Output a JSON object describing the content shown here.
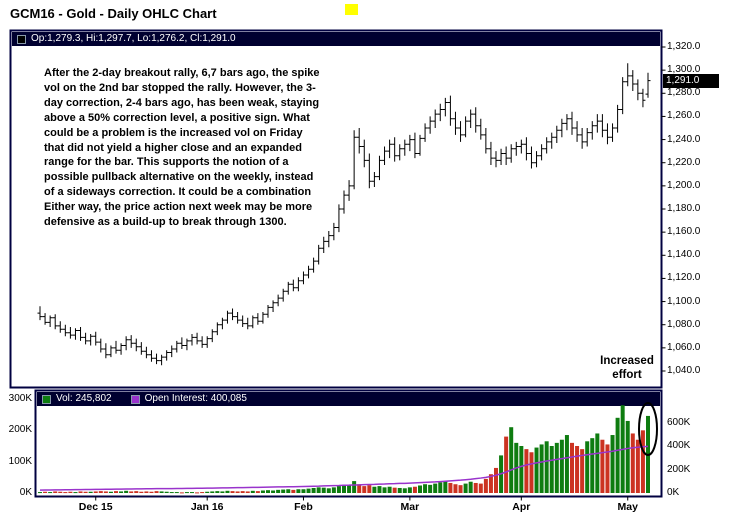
{
  "window": {
    "title": "GCM16 - Gold - Daily OHLC Chart"
  },
  "colors": {
    "frame": "#000040",
    "legend_bg": "#000030",
    "price": "#000000",
    "volume_up": "#0e7c10",
    "volume_down": "#cc3322",
    "open_interest": "#9933cc",
    "highlight": "#ffff00",
    "badge_bg": "#000000",
    "badge_text": "#ffffff"
  },
  "price_panel": {
    "legend_text": "Op:1,279.3, Hi:1,297.7, Lo:1,276.2, Cl:1,291.0",
    "current_price_label": "1,291.0",
    "axis": {
      "labels": [
        "1,320.0",
        "1,300.0",
        "1,280.0",
        "1,260.0",
        "1,240.0",
        "1,220.0",
        "1,200.0",
        "1,180.0",
        "1,160.0",
        "1,140.0",
        "1,120.0",
        "1,100.0",
        "1,080.0",
        "1,060.0",
        "1,040.0"
      ],
      "values": [
        1320,
        1300,
        1280,
        1260,
        1240,
        1220,
        1200,
        1180,
        1160,
        1140,
        1120,
        1100,
        1080,
        1060,
        1040
      ]
    },
    "annotation_lines": [
      "After the 2-day breakout rally, 6,7 bars ago, the spike",
      "vol on the 2nd bar stopped the rally.  However, the 3-",
      "day correction, 2-4 bars ago, has been weak, staying",
      "above a 50% correction level, a positive sign.  What",
      "could be a problem is the increased vol on Friday",
      "that did not yield a higher close and an expanded",
      "range for the bar.  This supports the notion of a",
      "possible pullback alternative on the weekly, instead",
      "of a sideways correction.  It could be a combination",
      "Either way, the price action next week may be more",
      "defensive as a build-up to break through 1300."
    ],
    "effort_note_lines": [
      "Increased",
      "effort"
    ]
  },
  "volume_panel": {
    "legend_vol": "Vol: 245,802",
    "legend_oi": "Open Interest: 400,085",
    "left_axis": {
      "labels": [
        "300K",
        "200K",
        "100K",
        "0K"
      ],
      "values": [
        300,
        200,
        100,
        0
      ]
    },
    "right_axis": {
      "labels": [
        "600K",
        "400K",
        "200K",
        "0K"
      ],
      "values": [
        600,
        400,
        200,
        0
      ]
    }
  },
  "chart_data": {
    "type": "ohlc+volume",
    "title": "GCM16 - Gold - Daily OHLC Chart",
    "last_bar": {
      "open": 1279.3,
      "high": 1297.7,
      "low": 1276.2,
      "close": 1291.0,
      "volume": 245802,
      "open_interest": 400085
    },
    "x_ticks": [
      {
        "label": "Dec 15",
        "index": 11
      },
      {
        "label": "Jan 16",
        "index": 33
      },
      {
        "label": "Feb",
        "index": 52
      },
      {
        "label": "Mar",
        "index": 73
      },
      {
        "label": "Apr",
        "index": 95
      },
      {
        "label": "May",
        "index": 116
      }
    ],
    "price": {
      "ylim": [
        1040,
        1320
      ],
      "tick_step": 20,
      "ohlc": [
        [
          1090,
          1096,
          1084,
          1087
        ],
        [
          1087,
          1090,
          1080,
          1082
        ],
        [
          1082,
          1088,
          1078,
          1086
        ],
        [
          1086,
          1089,
          1076,
          1079
        ],
        [
          1079,
          1083,
          1073,
          1076
        ],
        [
          1076,
          1080,
          1070,
          1073
        ],
        [
          1073,
          1078,
          1068,
          1071
        ],
        [
          1071,
          1077,
          1067,
          1075
        ],
        [
          1075,
          1078,
          1066,
          1069
        ],
        [
          1069,
          1073,
          1063,
          1066
        ],
        [
          1066,
          1072,
          1062,
          1070
        ],
        [
          1070,
          1074,
          1062,
          1065
        ],
        [
          1065,
          1068,
          1056,
          1059
        ],
        [
          1059,
          1064,
          1051,
          1054
        ],
        [
          1054,
          1062,
          1052,
          1060
        ],
        [
          1060,
          1066,
          1055,
          1058
        ],
        [
          1058,
          1064,
          1054,
          1062
        ],
        [
          1062,
          1070,
          1058,
          1067
        ],
        [
          1067,
          1071,
          1060,
          1064
        ],
        [
          1064,
          1068,
          1057,
          1061
        ],
        [
          1061,
          1065,
          1054,
          1057
        ],
        [
          1057,
          1061,
          1051,
          1054
        ],
        [
          1054,
          1058,
          1048,
          1051
        ],
        [
          1051,
          1055,
          1046,
          1049
        ],
        [
          1049,
          1054,
          1045,
          1052
        ],
        [
          1052,
          1058,
          1049,
          1056
        ],
        [
          1056,
          1062,
          1052,
          1059
        ],
        [
          1059,
          1066,
          1056,
          1064
        ],
        [
          1064,
          1069,
          1059,
          1062
        ],
        [
          1062,
          1068,
          1058,
          1066
        ],
        [
          1066,
          1072,
          1062,
          1069
        ],
        [
          1069,
          1073,
          1063,
          1066
        ],
        [
          1066,
          1070,
          1060,
          1063
        ],
        [
          1063,
          1070,
          1060,
          1068
        ],
        [
          1068,
          1076,
          1065,
          1074
        ],
        [
          1074,
          1082,
          1071,
          1080
        ],
        [
          1080,
          1086,
          1076,
          1084
        ],
        [
          1084,
          1092,
          1081,
          1090
        ],
        [
          1090,
          1094,
          1084,
          1087
        ],
        [
          1087,
          1091,
          1081,
          1084
        ],
        [
          1084,
          1088,
          1078,
          1081
        ],
        [
          1081,
          1086,
          1076,
          1079
        ],
        [
          1079,
          1088,
          1077,
          1086
        ],
        [
          1086,
          1090,
          1080,
          1083
        ],
        [
          1083,
          1091,
          1081,
          1089
        ],
        [
          1089,
          1097,
          1086,
          1095
        ],
        [
          1095,
          1101,
          1091,
          1099
        ],
        [
          1099,
          1106,
          1096,
          1103
        ],
        [
          1103,
          1111,
          1100,
          1109
        ],
        [
          1109,
          1117,
          1106,
          1115
        ],
        [
          1115,
          1119,
          1109,
          1112
        ],
        [
          1112,
          1121,
          1109,
          1118
        ],
        [
          1118,
          1126,
          1115,
          1123
        ],
        [
          1123,
          1131,
          1120,
          1128
        ],
        [
          1128,
          1138,
          1125,
          1135
        ],
        [
          1135,
          1149,
          1132,
          1146
        ],
        [
          1146,
          1156,
          1142,
          1152
        ],
        [
          1152,
          1161,
          1147,
          1157
        ],
        [
          1157,
          1168,
          1153,
          1164
        ],
        [
          1164,
          1184,
          1160,
          1180
        ],
        [
          1180,
          1196,
          1176,
          1192
        ],
        [
          1192,
          1205,
          1187,
          1200
        ],
        [
          1200,
          1248,
          1197,
          1242
        ],
        [
          1242,
          1250,
          1228,
          1234
        ],
        [
          1234,
          1240,
          1216,
          1222
        ],
        [
          1222,
          1228,
          1198,
          1204
        ],
        [
          1204,
          1212,
          1199,
          1208
        ],
        [
          1208,
          1226,
          1205,
          1222
        ],
        [
          1222,
          1234,
          1218,
          1230
        ],
        [
          1230,
          1240,
          1224,
          1236
        ],
        [
          1236,
          1242,
          1221,
          1226
        ],
        [
          1226,
          1236,
          1222,
          1232
        ],
        [
          1232,
          1240,
          1226,
          1236
        ],
        [
          1236,
          1244,
          1230,
          1240
        ],
        [
          1240,
          1246,
          1224,
          1228
        ],
        [
          1228,
          1244,
          1226,
          1241
        ],
        [
          1241,
          1254,
          1238,
          1250
        ],
        [
          1250,
          1260,
          1245,
          1256
        ],
        [
          1256,
          1266,
          1250,
          1262
        ],
        [
          1262,
          1271,
          1256,
          1266
        ],
        [
          1266,
          1276,
          1260,
          1272
        ],
        [
          1272,
          1278,
          1252,
          1258
        ],
        [
          1258,
          1264,
          1244,
          1250
        ],
        [
          1250,
          1256,
          1238,
          1244
        ],
        [
          1244,
          1260,
          1242,
          1256
        ],
        [
          1256,
          1266,
          1250,
          1262
        ],
        [
          1262,
          1268,
          1246,
          1252
        ],
        [
          1252,
          1258,
          1240,
          1244
        ],
        [
          1244,
          1250,
          1228,
          1232
        ],
        [
          1232,
          1238,
          1218,
          1224
        ],
        [
          1224,
          1230,
          1216,
          1222
        ],
        [
          1222,
          1232,
          1218,
          1228
        ],
        [
          1228,
          1234,
          1218,
          1224
        ],
        [
          1224,
          1236,
          1220,
          1232
        ],
        [
          1232,
          1238,
          1226,
          1234
        ],
        [
          1234,
          1240,
          1228,
          1236
        ],
        [
          1236,
          1242,
          1222,
          1228
        ],
        [
          1228,
          1234,
          1215,
          1220
        ],
        [
          1220,
          1230,
          1216,
          1226
        ],
        [
          1226,
          1236,
          1222,
          1232
        ],
        [
          1232,
          1242,
          1228,
          1238
        ],
        [
          1238,
          1246,
          1232,
          1242
        ],
        [
          1242,
          1252,
          1237,
          1248
        ],
        [
          1248,
          1258,
          1242,
          1254
        ],
        [
          1254,
          1262,
          1248,
          1258
        ],
        [
          1258,
          1264,
          1244,
          1250
        ],
        [
          1250,
          1256,
          1238,
          1244
        ],
        [
          1244,
          1250,
          1232,
          1238
        ],
        [
          1238,
          1250,
          1234,
          1246
        ],
        [
          1246,
          1256,
          1240,
          1252
        ],
        [
          1252,
          1262,
          1246,
          1256
        ],
        [
          1256,
          1262,
          1242,
          1248
        ],
        [
          1248,
          1254,
          1236,
          1242
        ],
        [
          1242,
          1254,
          1238,
          1250
        ],
        [
          1250,
          1270,
          1246,
          1266
        ],
        [
          1266,
          1294,
          1262,
          1290
        ],
        [
          1290,
          1306,
          1286,
          1295
        ],
        [
          1295,
          1300,
          1282,
          1288
        ],
        [
          1288,
          1292,
          1274,
          1280
        ],
        [
          1280,
          1284,
          1268,
          1274
        ],
        [
          1279.3,
          1297.7,
          1276.2,
          1291
        ]
      ]
    },
    "volume": {
      "unit": "K",
      "ylim": [
        0,
        300
      ],
      "values": [
        3,
        4,
        3,
        5,
        4,
        3,
        4,
        3,
        5,
        4,
        4,
        5,
        6,
        5,
        4,
        6,
        5,
        7,
        5,
        6,
        4,
        5,
        4,
        6,
        5,
        4,
        3,
        3,
        2,
        3,
        3,
        2,
        3,
        4,
        5,
        6,
        5,
        7,
        6,
        5,
        6,
        5,
        7,
        6,
        8,
        9,
        8,
        10,
        11,
        12,
        10,
        12,
        12,
        14,
        16,
        18,
        17,
        15,
        18,
        22,
        26,
        24,
        38,
        28,
        22,
        25,
        20,
        22,
        18,
        20,
        17,
        16,
        15,
        18,
        20,
        24,
        28,
        26,
        30,
        34,
        38,
        32,
        28,
        25,
        30,
        36,
        32,
        30,
        45,
        60,
        80,
        120,
        180,
        210,
        160,
        150,
        140,
        130,
        145,
        155,
        165,
        150,
        160,
        170,
        185,
        160,
        150,
        140,
        165,
        175,
        190,
        170,
        155,
        185,
        240,
        280,
        230,
        190,
        170,
        200,
        246
      ]
    },
    "open_interest": {
      "unit": "K",
      "ylim": [
        0,
        600
      ],
      "values": [
        25,
        26,
        26,
        27,
        27,
        28,
        28,
        29,
        29,
        30,
        30,
        31,
        31,
        32,
        32,
        33,
        33,
        34,
        34,
        35,
        35,
        36,
        36,
        37,
        37,
        38,
        38,
        39,
        39,
        40,
        40,
        41,
        41,
        42,
        42,
        43,
        44,
        44,
        45,
        46,
        46,
        47,
        48,
        48,
        49,
        50,
        51,
        52,
        53,
        54,
        54,
        55,
        56,
        57,
        58,
        59,
        61,
        62,
        63,
        64,
        66,
        67,
        69,
        70,
        72,
        73,
        74,
        76,
        77,
        79,
        80,
        82,
        83,
        85,
        87,
        89,
        91,
        93,
        95,
        98,
        101,
        104,
        107,
        110,
        114,
        118,
        123,
        128,
        134,
        142,
        152,
        165,
        180,
        198,
        215,
        228,
        240,
        250,
        258,
        266,
        274,
        281,
        288,
        295,
        302,
        309,
        316,
        322,
        328,
        334,
        340,
        346,
        352,
        358,
        366,
        374,
        382,
        388,
        392,
        396,
        400
      ]
    }
  }
}
